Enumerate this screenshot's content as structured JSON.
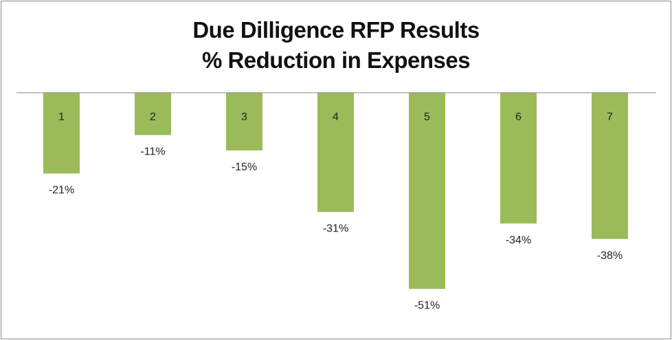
{
  "chart_data": {
    "type": "bar",
    "title": [
      "Due Dilligence RFP Results",
      "% Reduction in Expenses"
    ],
    "categories": [
      "1",
      "2",
      "3",
      "4",
      "5",
      "6",
      "7"
    ],
    "values": [
      -21,
      -11,
      -15,
      -31,
      -51,
      -34,
      -38
    ],
    "data_labels": [
      "-21%",
      "-11%",
      "-15%",
      "-31%",
      "-51%",
      "-34%",
      "-38%"
    ],
    "xlabel": "",
    "ylabel": "",
    "ylim": [
      -55,
      0
    ],
    "grid": false,
    "legend": "none",
    "colors": {
      "bar": "#9bbb59",
      "axis": "#868686",
      "text": "#222222"
    }
  }
}
